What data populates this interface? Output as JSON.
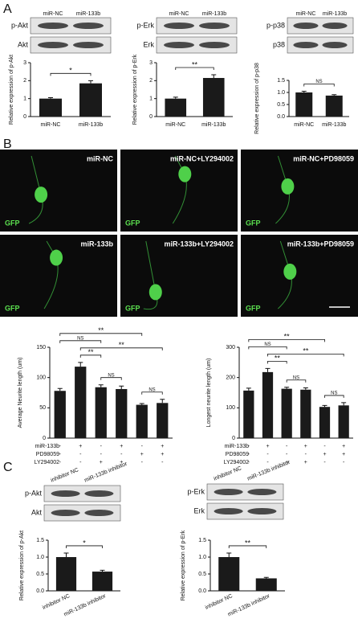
{
  "panel_labels": [
    "A",
    "B",
    "C"
  ],
  "blots": [
    {
      "lanes": [
        "miR-NC",
        "miR-133b"
      ],
      "rows": [
        "p-Akt",
        "Akt"
      ]
    },
    {
      "lanes": [
        "miR-NC",
        "miR-133b"
      ],
      "rows": [
        "p-Erk",
        "Erk"
      ]
    },
    {
      "lanes": [
        "miR-NC",
        "miR-133b"
      ],
      "rows": [
        "p-p38",
        "p38"
      ]
    },
    {
      "lanes": [
        "inhibitor NC",
        "miR-133b inhibitor"
      ],
      "rows": [
        "p-Akt",
        "Akt"
      ]
    },
    {
      "lanes": [
        "inhibitor NC",
        "miR-133b inhibitor"
      ],
      "rows": [
        "p-Erk",
        "Erk"
      ]
    }
  ],
  "images": [
    {
      "label": "miR-NC",
      "stain": "GFP"
    },
    {
      "label": "miR-NC+LY294002",
      "stain": "GFP"
    },
    {
      "label": "miR-NC+PD98059",
      "stain": "GFP"
    },
    {
      "label": "miR-133b",
      "stain": "GFP"
    },
    {
      "label": "miR-133b+LY294002",
      "stain": "GFP"
    },
    {
      "label": "miR-133b+PD98059",
      "stain": "GFP"
    }
  ],
  "chart_data": [
    {
      "type": "bar",
      "ylabel": "Relative expression of p-Akt",
      "categories": [
        "miR-NC",
        "miR-133b"
      ],
      "values": [
        1.0,
        1.85
      ],
      "errors": [
        0.05,
        0.15
      ],
      "color": "#1a1a1a",
      "ylim": [
        0,
        3
      ],
      "yticks": [
        0,
        1,
        2,
        3
      ],
      "annotations": [
        {
          "text": "*",
          "between": [
            0,
            1
          ]
        }
      ]
    },
    {
      "type": "bar",
      "ylabel": "Relative expression of p-Erk",
      "categories": [
        "miR-NC",
        "miR-133b"
      ],
      "values": [
        1.0,
        2.15
      ],
      "errors": [
        0.08,
        0.18
      ],
      "color": "#1a1a1a",
      "ylim": [
        0,
        3
      ],
      "yticks": [
        0,
        1,
        2,
        3
      ],
      "annotations": [
        {
          "text": "**",
          "between": [
            0,
            1
          ]
        }
      ]
    },
    {
      "type": "bar",
      "ylabel": "Relative expression of p-p38",
      "categories": [
        "miR-NC",
        "miR-133b"
      ],
      "values": [
        1.0,
        0.87
      ],
      "errors": [
        0.05,
        0.04
      ],
      "color": "#1a1a1a",
      "ylim": [
        0,
        1.5
      ],
      "yticks": [
        {
          "value": 0,
          "label": "0.0"
        },
        0.5,
        {
          "value": 1,
          "label": "1.0"
        },
        1.5
      ],
      "annotations": [
        {
          "text": "NS",
          "between": [
            0,
            1
          ]
        }
      ]
    },
    {
      "type": "bar",
      "ylabel": "Average Neurite length (um)",
      "values": [
        78,
        118,
        84,
        81,
        55,
        58
      ],
      "errors": [
        4,
        7,
        4,
        5,
        2,
        6
      ],
      "color": "#1a1a1a",
      "ylim": [
        0,
        150
      ],
      "yticks": [
        0,
        50,
        100,
        150
      ],
      "conditions": [
        {
          "name": "miR-133b",
          "signs": [
            "-",
            "+",
            "-",
            "+",
            "-",
            "+"
          ]
        },
        {
          "name": "PD98059",
          "signs": [
            "-",
            "-",
            "-",
            "-",
            "+",
            "+"
          ]
        },
        {
          "name": "LY294002",
          "signs": [
            "-",
            "-",
            "+",
            "+",
            "-",
            "-"
          ]
        }
      ],
      "annotations": [
        {
          "text": "NS",
          "between": [
            2,
            3
          ]
        },
        {
          "text": "NS",
          "between": [
            4,
            5
          ]
        },
        {
          "text": "**",
          "between": [
            1,
            2
          ]
        },
        {
          "text": "**",
          "between": [
            1,
            5
          ]
        },
        {
          "text": "NS",
          "between": [
            0,
            2
          ]
        },
        {
          "text": "**",
          "between": [
            0,
            4
          ]
        }
      ]
    },
    {
      "type": "bar",
      "ylabel": "Longest neurite length (um)",
      "values": [
        157,
        218,
        163,
        160,
        103,
        108
      ],
      "errors": [
        8,
        12,
        5,
        6,
        5,
        9
      ],
      "color": "#1a1a1a",
      "ylim": [
        0,
        300
      ],
      "yticks": [
        0,
        100,
        200,
        300
      ],
      "conditions": [
        {
          "name": "miR-133b",
          "signs": [
            "-",
            "+",
            "-",
            "+",
            "-",
            "+"
          ]
        },
        {
          "name": "PD98059",
          "signs": [
            "-",
            "-",
            "-",
            "-",
            "+",
            "+"
          ]
        },
        {
          "name": "LY294002",
          "signs": [
            "-",
            "-",
            "+",
            "+",
            "-",
            "-"
          ]
        }
      ],
      "annotations": [
        {
          "text": "NS",
          "between": [
            2,
            3
          ]
        },
        {
          "text": "NS",
          "between": [
            4,
            5
          ]
        },
        {
          "text": "**",
          "between": [
            1,
            2
          ]
        },
        {
          "text": "**",
          "between": [
            1,
            5
          ]
        },
        {
          "text": "NS",
          "between": [
            0,
            2
          ]
        },
        {
          "text": "**",
          "between": [
            0,
            4
          ]
        }
      ]
    },
    {
      "type": "bar",
      "ylabel": "Relative expression of p-Akt",
      "categories": [
        "inhibitor NC",
        "miR-133b inhibitor"
      ],
      "values": [
        1.0,
        0.57
      ],
      "errors": [
        0.12,
        0.04
      ],
      "color": "#1a1a1a",
      "ylim": [
        0,
        1.5
      ],
      "yticks": [
        {
          "value": 0,
          "label": "0.0"
        },
        0.5,
        {
          "value": 1,
          "label": "1.0"
        },
        1.5
      ],
      "annotations": [
        {
          "text": "*",
          "between": [
            0,
            1
          ]
        }
      ]
    },
    {
      "type": "bar",
      "ylabel": "Relative expression of p-Erk",
      "categories": [
        "inhibitor NC",
        "miR-133b inhibitor"
      ],
      "values": [
        1.0,
        0.37
      ],
      "errors": [
        0.12,
        0.03
      ],
      "color": "#1a1a1a",
      "ylim": [
        0,
        1.5
      ],
      "yticks": [
        {
          "value": 0,
          "label": "0.0"
        },
        0.5,
        {
          "value": 1,
          "label": "1.0"
        },
        1.5
      ],
      "annotations": [
        {
          "text": "**",
          "between": [
            0,
            1
          ]
        }
      ]
    }
  ]
}
